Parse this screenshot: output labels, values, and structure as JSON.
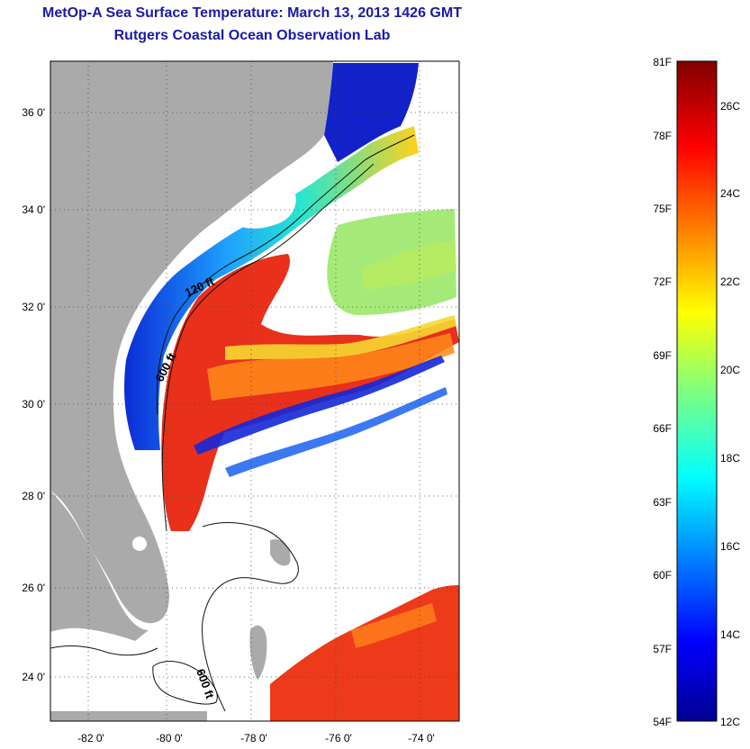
{
  "header": {
    "title": "MetOp-A Sea Surface Temperature:  March 13, 2013 1426 GMT",
    "subtitle": "Rutgers Coastal Ocean Observation Lab"
  },
  "map": {
    "lat_ticks": [
      "36 0'",
      "34 0'",
      "32 0'",
      "30 0'",
      "28 0'",
      "26 0'",
      "24 0'"
    ],
    "lon_ticks": [
      "-82 0'",
      "-80 0'",
      "-78 0'",
      "-76 0'",
      "-74 0'"
    ],
    "contour_labels": [
      "120 ft",
      "600 ft",
      "600 ft"
    ],
    "colors": {
      "land": "#aaaaaa",
      "no_data": "#ffffff",
      "warm": "#e8301a",
      "cold": "#0a1fc4"
    }
  },
  "colorbar": {
    "fahrenheit_labels": [
      "81F",
      "78F",
      "75F",
      "72F",
      "69F",
      "66F",
      "63F",
      "60F",
      "57F",
      "54F"
    ],
    "celsius_labels": [
      "26C",
      "24C",
      "22C",
      "20C",
      "18C",
      "16C",
      "14C",
      "12C"
    ],
    "colormap": "jet"
  }
}
